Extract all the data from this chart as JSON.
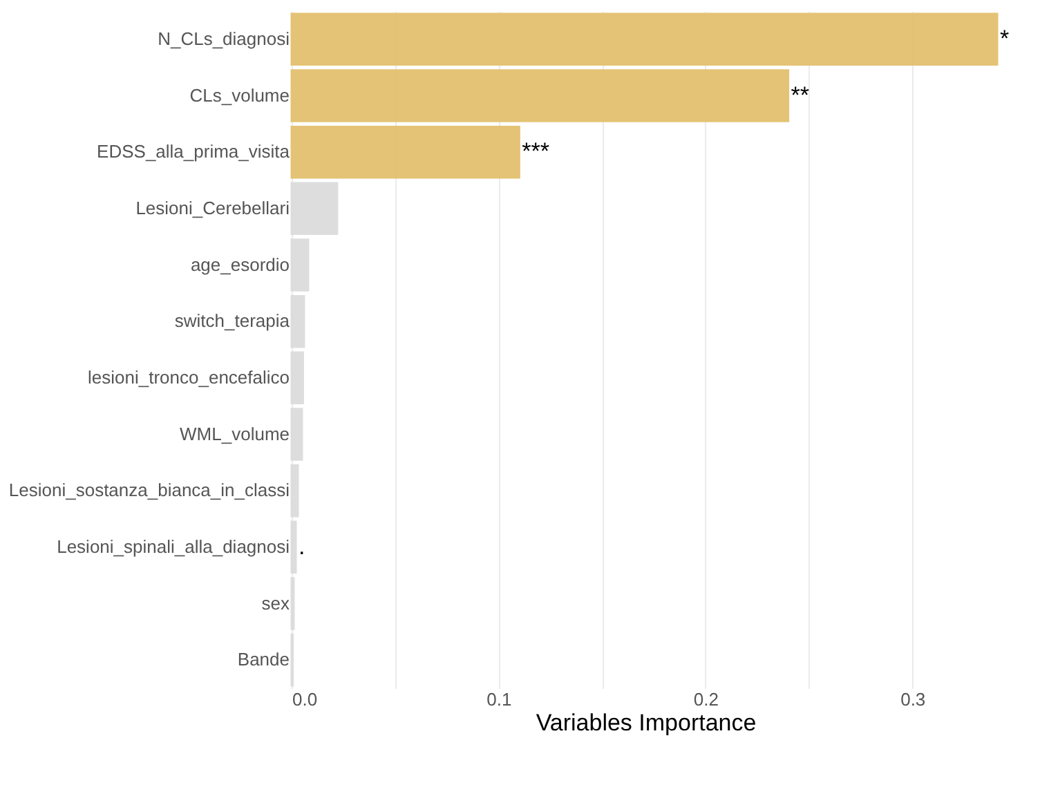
{
  "chart_data": {
    "type": "bar",
    "orientation": "horizontal",
    "xlabel": "Variables Importance",
    "categories": [
      "N_CLs_diagnosi",
      "CLs_volume",
      "EDSS_alla_prima_visita",
      "Lesioni_Cerebellari",
      "age_esordio",
      "switch_terapia",
      "lesioni_tronco_encefalico",
      "WML_volume",
      "Lesioni_sostanza_bianca_in_classi",
      "Lesioni_spinali_alla_diagnosi",
      "sex",
      "Bande"
    ],
    "values": [
      0.341,
      0.24,
      0.11,
      0.022,
      0.008,
      0.006,
      0.0055,
      0.005,
      0.003,
      0.002,
      0.001,
      0.0005
    ],
    "colors": [
      "#e3c06f",
      "#e3c06f",
      "#e3c06f",
      "#dcdcdc",
      "#dcdcdc",
      "#dcdcdc",
      "#dcdcdc",
      "#dcdcdc",
      "#dcdcdc",
      "#dcdcdc",
      "#dcdcdc",
      "#dcdcdc"
    ],
    "value_labels": [
      "*",
      "**",
      "***",
      null,
      null,
      null,
      null,
      null,
      null,
      ".",
      null,
      null
    ],
    "xlim": [
      0,
      0.342
    ],
    "xticks": [
      {
        "value": 0,
        "label": "0.0"
      },
      {
        "value": 0.05,
        "label": null
      },
      0.1,
      {
        "value": 0.15,
        "label": null
      },
      0.2,
      {
        "value": 0.25,
        "label": null
      },
      0.3
    ],
    "grid": "x"
  }
}
